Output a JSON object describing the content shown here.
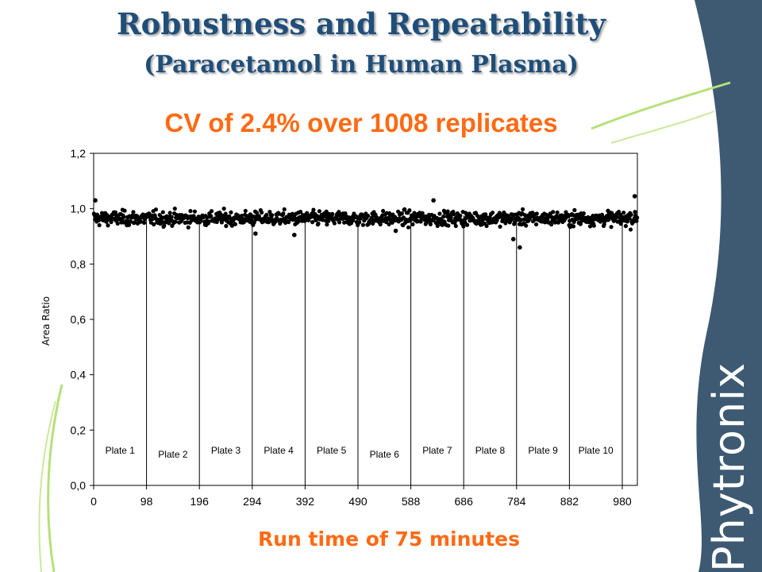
{
  "slide": {
    "title_line1": "Robustness and Repeatability",
    "title_line2": "(Paracetamol in Human Plasma)",
    "subtitle": "CV of 2.4% over 1008 replicates",
    "caption": "Run time of 75 minutes",
    "logo_text": "Phytronix"
  },
  "colors": {
    "title": "#1f4e79",
    "accent_orange": "#ff6a13",
    "side_panel": "#3d5a72",
    "swoosh_green": "#b7e07a",
    "points": "#000000"
  },
  "chart_data": {
    "type": "scatter",
    "ylabel": "Area Ratio",
    "xlabel": "",
    "ylim": [
      0.0,
      1.2
    ],
    "xlim": [
      0,
      1008
    ],
    "x_ticks": [
      0,
      98,
      196,
      294,
      392,
      490,
      588,
      686,
      784,
      882,
      980
    ],
    "y_ticks": [
      0.0,
      0.2,
      0.4,
      0.6,
      0.8,
      1.0,
      1.2
    ],
    "y_tick_labels": [
      "0,0",
      "0,2",
      "0,4",
      "0,6",
      "0,8",
      "1,0",
      "1,2"
    ],
    "plate_boundaries": [
      98,
      196,
      294,
      392,
      490,
      588,
      686,
      784,
      882,
      980
    ],
    "plates": [
      {
        "label": "Plate 1",
        "x": 49
      },
      {
        "label": "Plate 2",
        "x": 147
      },
      {
        "label": "Plate 3",
        "x": 245
      },
      {
        "label": "Plate 4",
        "x": 343
      },
      {
        "label": "Plate 5",
        "x": 441
      },
      {
        "label": "Plate 6",
        "x": 539
      },
      {
        "label": "Plate 7",
        "x": 637
      },
      {
        "label": "Plate 8",
        "x": 735
      },
      {
        "label": "Plate 9",
        "x": 833
      },
      {
        "label": "Plate 10",
        "x": 931
      }
    ],
    "series": [
      {
        "n_points": 1008,
        "mean": 0.965,
        "cv_percent": 2.4,
        "outliers": [
          {
            "x": 778,
            "y": 0.89
          },
          {
            "x": 790,
            "y": 0.86
          },
          {
            "x": 560,
            "y": 0.92
          },
          {
            "x": 300,
            "y": 0.91
          },
          {
            "x": 372,
            "y": 0.905
          },
          {
            "x": 1003,
            "y": 1.045
          },
          {
            "x": 3,
            "y": 1.03
          },
          {
            "x": 630,
            "y": 1.03
          }
        ]
      }
    ],
    "grid": false
  }
}
